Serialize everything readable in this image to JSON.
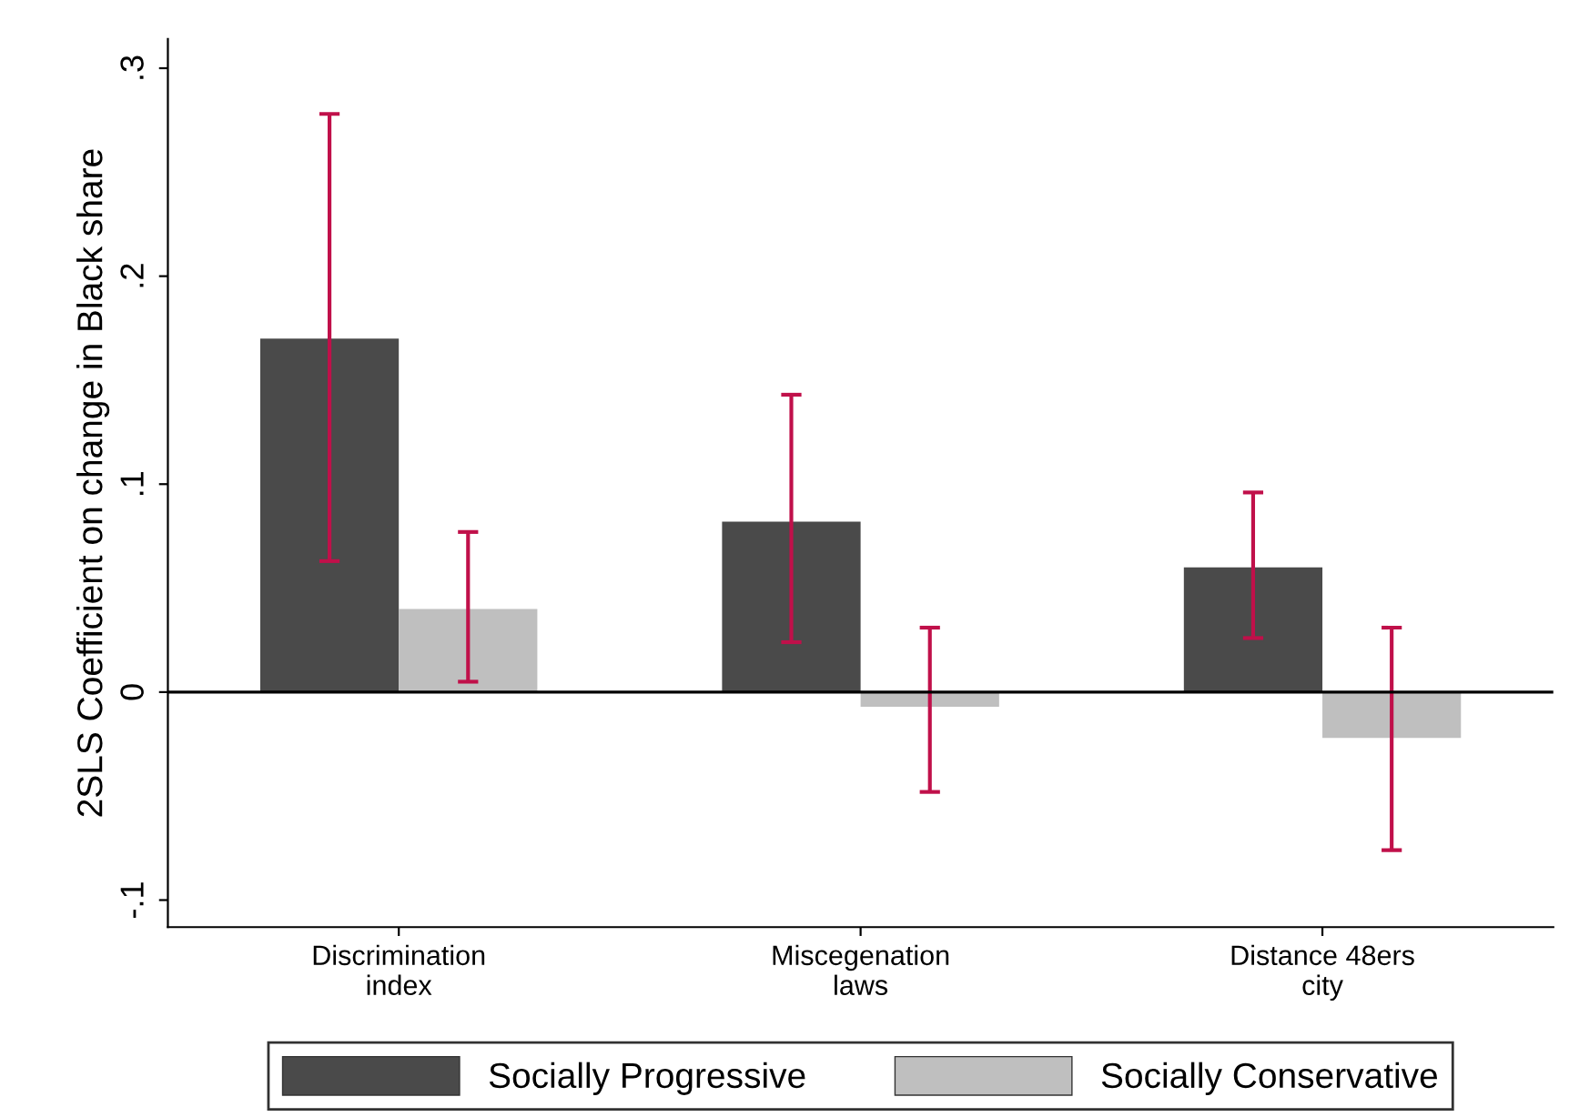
{
  "chart_data": {
    "type": "bar",
    "ylabel": "2SLS Coefficient on change in Black share",
    "categories": [
      "Discrimination\nindex",
      "Miscegenation\nlaws",
      "Distance 48ers\ncity"
    ],
    "series": [
      {
        "name": "Socially Progressive",
        "color": "#4a4a4a",
        "values": [
          0.17,
          0.082,
          0.06
        ],
        "errors": [
          [
            0.063,
            0.278
          ],
          [
            0.024,
            0.143
          ],
          [
            0.026,
            0.096
          ]
        ]
      },
      {
        "name": "Socially Conservative",
        "color": "#bfbfbf",
        "values": [
          0.04,
          -0.007,
          -0.022
        ],
        "errors": [
          [
            0.005,
            0.077
          ],
          [
            -0.048,
            0.031
          ],
          [
            -0.076,
            0.031
          ]
        ]
      }
    ],
    "ylim": [
      -0.113,
      0.314
    ],
    "yticks": [
      {
        "value": -0.1,
        "label": "-.1"
      },
      {
        "value": 0,
        "label": "0"
      },
      {
        "value": 0.1,
        "label": ".1"
      },
      {
        "value": 0.2,
        "label": ".2"
      },
      {
        "value": 0.3,
        "label": ".3"
      }
    ],
    "ref_lines": [
      {
        "axis": "y",
        "value": 0,
        "color": "#000000"
      }
    ],
    "grid": false,
    "legend": "bottom"
  }
}
